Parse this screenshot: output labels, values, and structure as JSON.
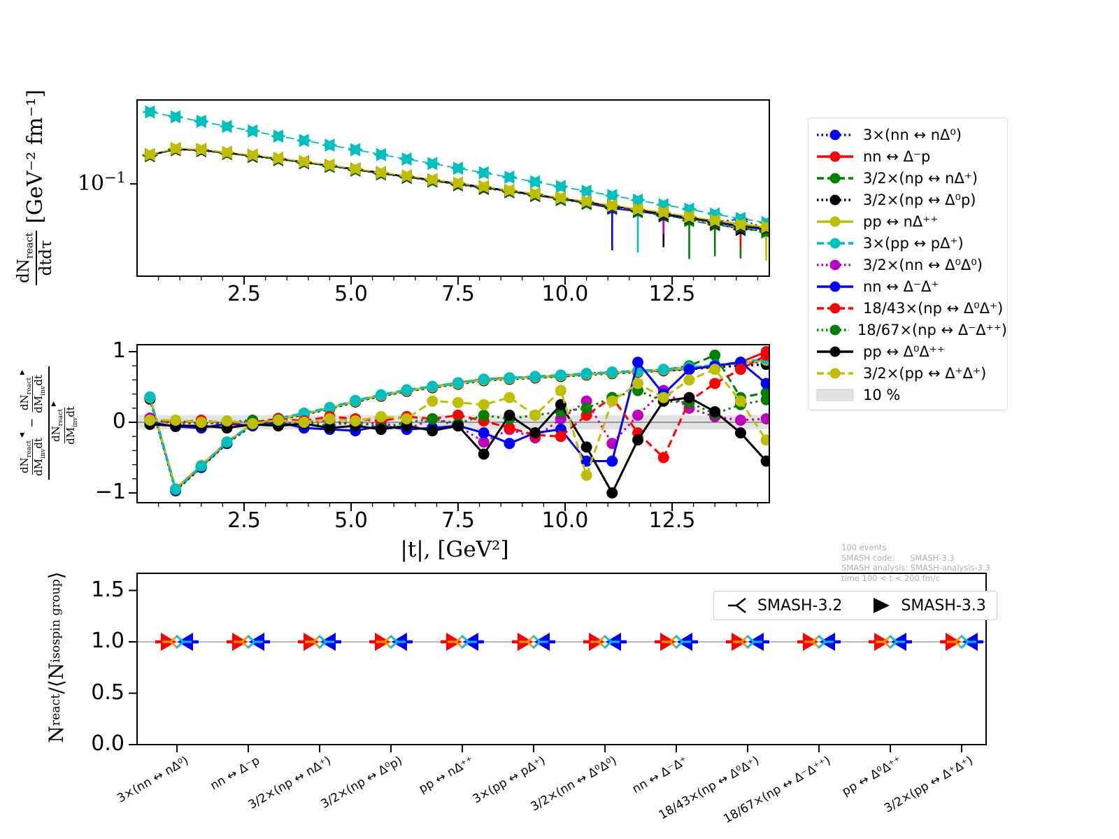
{
  "colors": {
    "blue": "#0000ff",
    "red": "#ff0000",
    "green": "#008000",
    "black": "#000000",
    "yellow": "#bfbf00",
    "cyan": "#00bfbf",
    "magenta": "#bf00bf",
    "band": "#e2e2e2",
    "zero_line": "#7f7f7f",
    "ratio_line": "#909090",
    "orange": "#ff9900",
    "skyblue": "#00bfff",
    "info_text": "#b0b0b0"
  },
  "reactions": [
    "3×(nn ↔ nΔ⁰)",
    "nn ↔ Δ⁻p",
    "3/2×(np ↔ nΔ⁺)",
    "3/2×(np ↔ Δ⁰p)",
    "pp ↔ nΔ⁺⁺",
    "3×(pp ↔ pΔ⁺)",
    "3/2×(nn ↔ Δ⁰Δ⁰)",
    "nn ↔ Δ⁻Δ⁺",
    "18/43×(np ↔ Δ⁰Δ⁺)",
    "18/67×(np ↔ Δ⁻Δ⁺⁺)",
    "pp ↔ Δ⁰Δ⁺⁺",
    "3/2×(pp ↔ Δ⁺Δ⁺)"
  ],
  "legend_styles": [
    {
      "color": "blue",
      "dash": "dotted"
    },
    {
      "color": "red",
      "dash": "solid"
    },
    {
      "color": "green",
      "dash": "dashed"
    },
    {
      "color": "black",
      "dash": "dotted"
    },
    {
      "color": "yellow",
      "dash": "solid"
    },
    {
      "color": "cyan",
      "dash": "dashed"
    },
    {
      "color": "magenta",
      "dash": "dotted"
    },
    {
      "color": "blue",
      "dash": "solid"
    },
    {
      "color": "red",
      "dash": "dashed"
    },
    {
      "color": "green",
      "dash": "dotted"
    },
    {
      "color": "black",
      "dash": "solid"
    },
    {
      "color": "yellow",
      "dash": "dashed"
    }
  ],
  "legend_band_label": "10 %",
  "labels": {
    "dn": "dN",
    "react": "react",
    "dtau": "dtdτ",
    "dm": "dM",
    "inv": "inv",
    "dt": "dt",
    "minus": "−",
    "tri32": "◀",
    "tri33": "▶",
    "unit_top": "[GeV⁻² fm⁻¹]",
    "ytick_b": "10",
    "ytick_e": "−1",
    "mid_xlabel": "|t|, [GeV²]",
    "N": "N",
    "slash": "/⟨",
    "isospin": "isospin group",
    "rang": "⟩",
    "smash32": "SMASH-3.2",
    "smash33": "SMASH-3.3"
  },
  "info_lines": [
    "100 events",
    "SMASH code:      SMASH-3.3",
    "SMASH analysis: SMASH-analysis-3.3",
    "time 100 < t < 200 fm/c"
  ],
  "chart_data": [
    {
      "type": "line",
      "title": "",
      "ylabel": "dN_react/dtdτ [GeV⁻² fm⁻¹]",
      "yscale": "log",
      "ylim": [
        0.011,
        0.73
      ],
      "ytick_labels": [
        "10⁻¹"
      ],
      "xlim": [
        0,
        14.77
      ],
      "xticks": [
        2.5,
        5.0,
        7.5,
        10.0,
        12.5
      ],
      "xtick_labels": [
        "2.5",
        "5.0",
        "7.5",
        "10.0",
        "12.5"
      ],
      "marker": "left-right-triangle-pair (SMASH-3.2 / SMASH-3.3)",
      "x": [
        0.3,
        0.9,
        1.5,
        2.1,
        2.7,
        3.3,
        3.9,
        4.5,
        5.1,
        5.7,
        6.3,
        6.9,
        7.5,
        8.1,
        8.7,
        9.3,
        9.9,
        10.5,
        11.1,
        11.7,
        12.3,
        12.9,
        13.5,
        14.1,
        14.7
      ],
      "series": [
        {
          "name": "3×(nn ↔ nΔ⁰)",
          "values": [
            0.196,
            0.226,
            0.221,
            0.206,
            0.193,
            0.179,
            0.166,
            0.152,
            0.139,
            0.128,
            0.118,
            0.108,
            0.099,
            0.091,
            0.083,
            0.076,
            0.07,
            0.064,
            0.058,
            0.053,
            0.049,
            0.044,
            0.041,
            0.043,
            0.035
          ]
        },
        {
          "name": "nn ↔ Δ⁻p",
          "values": [
            0.198,
            0.228,
            0.223,
            0.208,
            0.195,
            0.181,
            0.167,
            0.154,
            0.141,
            0.129,
            0.119,
            0.109,
            0.1,
            0.092,
            0.084,
            0.077,
            0.07,
            0.064,
            0.059,
            0.054,
            0.048,
            0.045,
            0.04,
            0.036,
            0.034
          ]
        },
        {
          "name": "3/2×(np ↔ nΔ⁺)",
          "values": [
            0.197,
            0.227,
            0.222,
            0.207,
            0.194,
            0.18,
            0.166,
            0.153,
            0.14,
            0.129,
            0.118,
            0.108,
            0.1,
            0.091,
            0.084,
            0.077,
            0.07,
            0.064,
            0.059,
            0.053,
            0.049,
            0.042,
            0.038,
            0.035,
            0.032
          ]
        },
        {
          "name": "3/2×(np ↔ Δ⁰p)",
          "values": [
            0.195,
            0.225,
            0.22,
            0.206,
            0.192,
            0.178,
            0.165,
            0.152,
            0.139,
            0.127,
            0.117,
            0.107,
            0.098,
            0.09,
            0.083,
            0.076,
            0.069,
            0.063,
            0.057,
            0.052,
            0.047,
            0.044,
            0.039,
            0.034,
            0.033
          ]
        },
        {
          "name": "pp ↔ nΔ⁺⁺",
          "values": [
            0.2,
            0.23,
            0.225,
            0.21,
            0.197,
            0.183,
            0.169,
            0.155,
            0.142,
            0.131,
            0.12,
            0.11,
            0.101,
            0.093,
            0.085,
            0.078,
            0.071,
            0.065,
            0.06,
            0.055,
            0.05,
            0.046,
            0.042,
            0.039,
            0.036
          ]
        },
        {
          "name": "3×(pp ↔ pΔ⁺)",
          "values": [
            0.55,
            0.49,
            0.44,
            0.39,
            0.35,
            0.31,
            0.28,
            0.25,
            0.225,
            0.2,
            0.18,
            0.162,
            0.145,
            0.13,
            0.117,
            0.105,
            0.094,
            0.084,
            0.076,
            0.068,
            0.061,
            0.055,
            0.049,
            0.044,
            0.04
          ]
        },
        {
          "name": "3/2×(nn ↔ Δ⁰Δ⁰)",
          "values": [
            0.199,
            0.229,
            0.224,
            0.209,
            0.196,
            0.182,
            0.168,
            0.154,
            0.141,
            0.13,
            0.119,
            0.109,
            0.101,
            0.092,
            0.085,
            0.077,
            0.071,
            0.065,
            0.059,
            0.054,
            0.049,
            0.045,
            0.041,
            0.037,
            0.035
          ]
        },
        {
          "name": "nn ↔ Δ⁻Δ⁺",
          "values": [
            0.197,
            0.226,
            0.221,
            0.207,
            0.193,
            0.18,
            0.166,
            0.153,
            0.14,
            0.128,
            0.118,
            0.108,
            0.099,
            0.091,
            0.084,
            0.076,
            0.07,
            0.063,
            0.056,
            0.052,
            0.048,
            0.044,
            0.04,
            0.036,
            0.034
          ]
        },
        {
          "name": "18/43×(np ↔ Δ⁰Δ⁺)",
          "values": [
            0.198,
            0.227,
            0.222,
            0.208,
            0.194,
            0.181,
            0.167,
            0.153,
            0.141,
            0.129,
            0.119,
            0.109,
            0.1,
            0.092,
            0.084,
            0.077,
            0.07,
            0.064,
            0.058,
            0.053,
            0.049,
            0.045,
            0.041,
            0.037,
            0.035
          ]
        },
        {
          "name": "18/67×(np ↔ Δ⁻Δ⁺⁺)",
          "values": [
            0.196,
            0.225,
            0.221,
            0.206,
            0.193,
            0.179,
            0.165,
            0.152,
            0.139,
            0.128,
            0.117,
            0.107,
            0.099,
            0.091,
            0.083,
            0.076,
            0.069,
            0.063,
            0.058,
            0.052,
            0.048,
            0.044,
            0.04,
            0.036,
            0.033
          ]
        },
        {
          "name": "pp ↔ Δ⁰Δ⁺⁺",
          "values": [
            0.199,
            0.228,
            0.223,
            0.209,
            0.195,
            0.182,
            0.168,
            0.154,
            0.142,
            0.13,
            0.119,
            0.11,
            0.101,
            0.093,
            0.085,
            0.078,
            0.071,
            0.065,
            0.059,
            0.054,
            0.049,
            0.045,
            0.041,
            0.037,
            0.035
          ]
        },
        {
          "name": "3/2×(pp ↔ Δ⁺Δ⁺)",
          "values": [
            0.201,
            0.231,
            0.226,
            0.211,
            0.198,
            0.184,
            0.17,
            0.156,
            0.143,
            0.131,
            0.121,
            0.111,
            0.102,
            0.094,
            0.086,
            0.079,
            0.072,
            0.066,
            0.06,
            0.055,
            0.051,
            0.046,
            0.042,
            0.038,
            0.036
          ]
        }
      ],
      "error_bars": [
        {
          "s": 7,
          "i": 18,
          "len": 60
        },
        {
          "s": 5,
          "i": 19,
          "len": 75
        },
        {
          "s": 3,
          "i": 20,
          "len": 45
        },
        {
          "s": 10,
          "i": 20,
          "len": 35
        },
        {
          "s": 2,
          "i": 21,
          "len": 55
        },
        {
          "s": 1,
          "i": 22,
          "len": 35
        },
        {
          "s": 2,
          "i": 22,
          "len": 45
        },
        {
          "s": 9,
          "i": 23,
          "len": 45
        },
        {
          "s": 6,
          "i": 20,
          "len": 28
        },
        {
          "s": 11,
          "i": 24,
          "len": 48
        },
        {
          "s": 1,
          "i": 23,
          "len": 30
        },
        {
          "s": 4,
          "i": 24,
          "len": 40
        }
      ]
    },
    {
      "type": "line",
      "title": "",
      "ylabel": "((dN_react/dM_inv dt)^SMASH-3.2 − (dN_react/dM_inv dt)^SMASH-3.3) / (dN_react/dM_inv dt)^SMASH-3.3",
      "xlabel": "|t|, [GeV²]",
      "ylim": [
        -1.12,
        1.12
      ],
      "yticks": [
        1,
        0,
        -1
      ],
      "ytick_labels": [
        "1",
        "0",
        "−1"
      ],
      "xlim": [
        0,
        14.77
      ],
      "xticks": [
        2.5,
        5.0,
        7.5,
        10.0,
        12.5
      ],
      "xtick_labels": [
        "2.5",
        "5.0",
        "7.5",
        "10.0",
        "12.5"
      ],
      "band": {
        "label": "10 %",
        "range": [
          -0.1,
          0.1
        ]
      },
      "x": [
        0.3,
        0.9,
        1.5,
        2.1,
        2.7,
        3.3,
        3.9,
        4.5,
        5.1,
        5.7,
        6.3,
        6.9,
        7.5,
        8.1,
        8.7,
        9.3,
        9.9,
        10.5,
        11.1,
        11.7,
        12.3,
        12.9,
        13.5,
        14.1,
        14.7
      ],
      "series": [
        {
          "name": "3×(nn ↔ nΔ⁰)",
          "values": [
            0.33,
            -0.97,
            -0.64,
            -0.3,
            -0.04,
            0.04,
            0.11,
            0.19,
            0.29,
            0.37,
            0.44,
            0.49,
            0.55,
            0.6,
            0.62,
            0.63,
            0.66,
            0.69,
            0.71,
            0.73,
            0.74,
            0.78,
            0.8,
            0.83,
            0.86
          ]
        },
        {
          "name": "nn ↔ Δ⁻p",
          "values": [
            0.35,
            -0.95,
            -0.62,
            -0.28,
            -0.02,
            0.05,
            0.12,
            0.2,
            0.3,
            0.38,
            0.45,
            0.5,
            0.56,
            0.61,
            0.63,
            0.64,
            0.66,
            0.68,
            0.7,
            0.72,
            0.73,
            0.76,
            0.79,
            0.85,
            1.0
          ]
        },
        {
          "name": "3/2×(np ↔ nΔ⁺)",
          "values": [
            0.34,
            -0.96,
            -0.63,
            -0.29,
            -0.03,
            0.05,
            0.12,
            0.2,
            0.3,
            0.38,
            0.45,
            0.5,
            0.55,
            0.6,
            0.62,
            0.64,
            0.65,
            0.68,
            0.7,
            0.72,
            0.74,
            0.8,
            0.95,
            0.35,
            0.42
          ]
        },
        {
          "name": "3/2×(np ↔ Δ⁰p)",
          "values": [
            0.33,
            -0.96,
            -0.63,
            -0.29,
            -0.03,
            0.04,
            0.11,
            0.19,
            0.29,
            0.37,
            0.44,
            0.49,
            0.54,
            0.59,
            0.61,
            0.63,
            0.65,
            0.67,
            0.69,
            0.71,
            0.73,
            0.75,
            0.78,
            0.8,
            0.82
          ]
        },
        {
          "name": "pp ↔ nΔ⁺⁺",
          "values": [
            0.35,
            -0.94,
            -0.61,
            -0.28,
            -0.02,
            0.05,
            0.12,
            0.2,
            0.3,
            0.38,
            0.45,
            0.5,
            0.55,
            0.6,
            0.62,
            0.64,
            0.66,
            0.68,
            0.7,
            0.72,
            0.74,
            0.77,
            0.8,
            0.84,
            0.88
          ]
        },
        {
          "name": "3×(pp ↔ pΔ⁺)",
          "values": [
            0.36,
            -0.95,
            -0.62,
            -0.28,
            -0.02,
            0.06,
            0.13,
            0.21,
            0.31,
            0.39,
            0.46,
            0.51,
            0.56,
            0.61,
            0.63,
            0.65,
            0.67,
            0.69,
            0.71,
            0.73,
            0.75,
            0.78,
            0.81,
            0.85,
            0.9
          ]
        },
        {
          "name": "3/2×(nn ↔ Δ⁰Δ⁰)",
          "values": [
            0.06,
            -0.03,
            0.0,
            -0.03,
            0.02,
            -0.02,
            0.0,
            0.03,
            -0.05,
            0.0,
            -0.1,
            0.05,
            -0.05,
            -0.28,
            -0.1,
            -0.22,
            0.05,
            0.3,
            -0.3,
            0.1,
            0.45,
            0.2,
            0.08,
            0.03,
            0.05
          ]
        },
        {
          "name": "nn ↔ Δ⁻Δ⁺",
          "values": [
            0.0,
            -0.06,
            -0.08,
            -0.02,
            -0.05,
            0.0,
            -0.08,
            -0.1,
            -0.12,
            -0.05,
            -0.1,
            -0.08,
            -0.05,
            -0.15,
            -0.3,
            -0.15,
            -0.1,
            -0.55,
            -0.55,
            0.85,
            0.4,
            0.75,
            0.8,
            0.85,
            0.55
          ]
        },
        {
          "name": "18/43×(np ↔ Δ⁰Δ⁺)",
          "values": [
            0.03,
            0.0,
            0.03,
            -0.02,
            0.0,
            0.05,
            0.02,
            0.08,
            0.05,
            0.02,
            0.08,
            0.05,
            0.1,
            0.02,
            -0.08,
            -0.18,
            -0.2,
            0.1,
            0.35,
            -0.15,
            -0.5,
            0.3,
            0.55,
            0.75,
            0.95
          ]
        },
        {
          "name": "18/67×(np ↔ Δ⁻Δ⁺⁺)",
          "values": [
            0.01,
            0.02,
            -0.02,
            0.0,
            0.03,
            -0.03,
            0.0,
            -0.05,
            0.02,
            -0.08,
            0.0,
            0.05,
            -0.02,
            0.1,
            0.05,
            0.1,
            0.15,
            0.2,
            0.35,
            0.45,
            0.3,
            0.28,
            0.12,
            0.25,
            0.32
          ]
        },
        {
          "name": "pp ↔ Δ⁰Δ⁺⁺",
          "values": [
            -0.03,
            -0.05,
            -0.05,
            -0.08,
            -0.03,
            -0.05,
            -0.02,
            -0.08,
            -0.05,
            -0.1,
            -0.05,
            -0.12,
            -0.05,
            -0.45,
            0.1,
            -0.15,
            0.25,
            -0.35,
            -1.0,
            -0.25,
            0.3,
            0.35,
            0.15,
            -0.15,
            -0.55
          ]
        },
        {
          "name": "3/2×(pp ↔ Δ⁺Δ⁺)",
          "values": [
            0.03,
            0.03,
            0.0,
            0.02,
            -0.02,
            0.03,
            0.0,
            0.05,
            0.02,
            0.08,
            0.05,
            0.3,
            0.28,
            0.25,
            0.35,
            0.1,
            0.45,
            -0.75,
            0.3,
            0.55,
            0.35,
            0.6,
            0.75,
            0.3,
            -0.25
          ]
        }
      ]
    },
    {
      "type": "scatter",
      "title": "",
      "ylabel": "N_react/⟨N_isospin group⟩",
      "ylim": [
        0,
        1.67
      ],
      "yticks": [
        0.0,
        0.5,
        1.0,
        1.5
      ],
      "ytick_labels": [
        "0.0",
        "0.5",
        "1.0",
        "1.5"
      ],
      "hline": 1.0,
      "categories": [
        "3×(nn ↔ nΔ⁰)",
        "nn ↔ Δ⁻p",
        "3/2×(np ↔ nΔ⁺)",
        "3/2×(np ↔ Δ⁰p)",
        "pp ↔ nΔ⁺⁺",
        "3×(pp ↔ pΔ⁺)",
        "3/2×(nn ↔ Δ⁰Δ⁰)",
        "nn ↔ Δ⁻Δ⁺",
        "18/43×(np ↔ Δ⁰Δ⁺)",
        "18/67×(np ↔ Δ⁻Δ⁺⁺)",
        "pp ↔ Δ⁰Δ⁺⁺",
        "3/2×(pp ↔ Δ⁺Δ⁺)"
      ],
      "series": [
        {
          "name": "SMASH-3.2",
          "values": [
            1.0,
            1.0,
            1.0,
            1.0,
            1.0,
            1.0,
            1.0,
            1.0,
            1.0,
            1.0,
            1.0,
            1.0
          ]
        },
        {
          "name": "SMASH-3.3",
          "values": [
            1.0,
            1.0,
            1.0,
            1.0,
            1.0,
            1.0,
            1.0,
            1.0,
            1.0,
            1.0,
            1.0,
            1.0
          ]
        }
      ],
      "legend": [
        "SMASH-3.2",
        "SMASH-3.3"
      ]
    }
  ]
}
